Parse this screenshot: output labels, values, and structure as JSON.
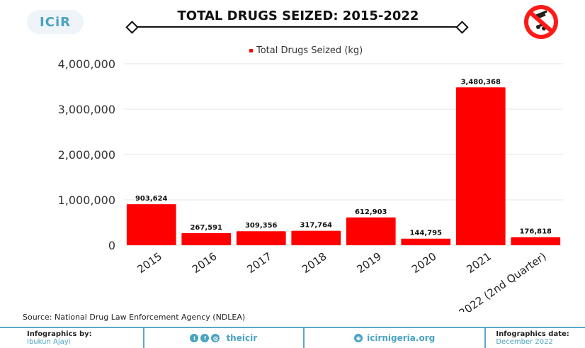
{
  "header": {
    "logo_text": "ICiR",
    "title": "TOTAL DRUGS SEIZED: 2015-2022",
    "no_drugs_icon": "no-drugs-icon"
  },
  "chart_data": {
    "type": "bar",
    "title": "TOTAL DRUGS SEIZED: 2015-2022",
    "legend": "Total Drugs Seized (kg)",
    "legend_position": "top-center",
    "categories": [
      "2015",
      "2016",
      "2017",
      "2018",
      "2019",
      "2020",
      "2021",
      "2022 (2nd Quarter)"
    ],
    "series": [
      {
        "name": "Total Drugs Seized (kg)",
        "values": [
          903624,
          267591,
          309356,
          317764,
          612903,
          144795,
          3480368,
          176818
        ],
        "labels": [
          "903,624",
          "267,591",
          "309,356",
          "317,764",
          "612,903",
          "144,795",
          "3,480,368",
          "176,818"
        ]
      }
    ],
    "ylim": [
      0,
      4000000
    ],
    "yticks": [
      0,
      1000000,
      2000000,
      3000000,
      4000000
    ],
    "ytick_labels": [
      "0",
      "1,000,000",
      "2,000,000",
      "3,000,000",
      "4,000,000"
    ],
    "grid": true,
    "bar_color": "#ff0000"
  },
  "source": "Source: National Drug Law Enforcement Agency (NDLEA)",
  "footer": {
    "credit_label": "Infographics by:",
    "credit_name": "Ibukun Ajayi",
    "social_handle": "theicir",
    "website": "icirnigeria.org",
    "date_label": "Infographics date:",
    "date_value": "December 2022"
  }
}
